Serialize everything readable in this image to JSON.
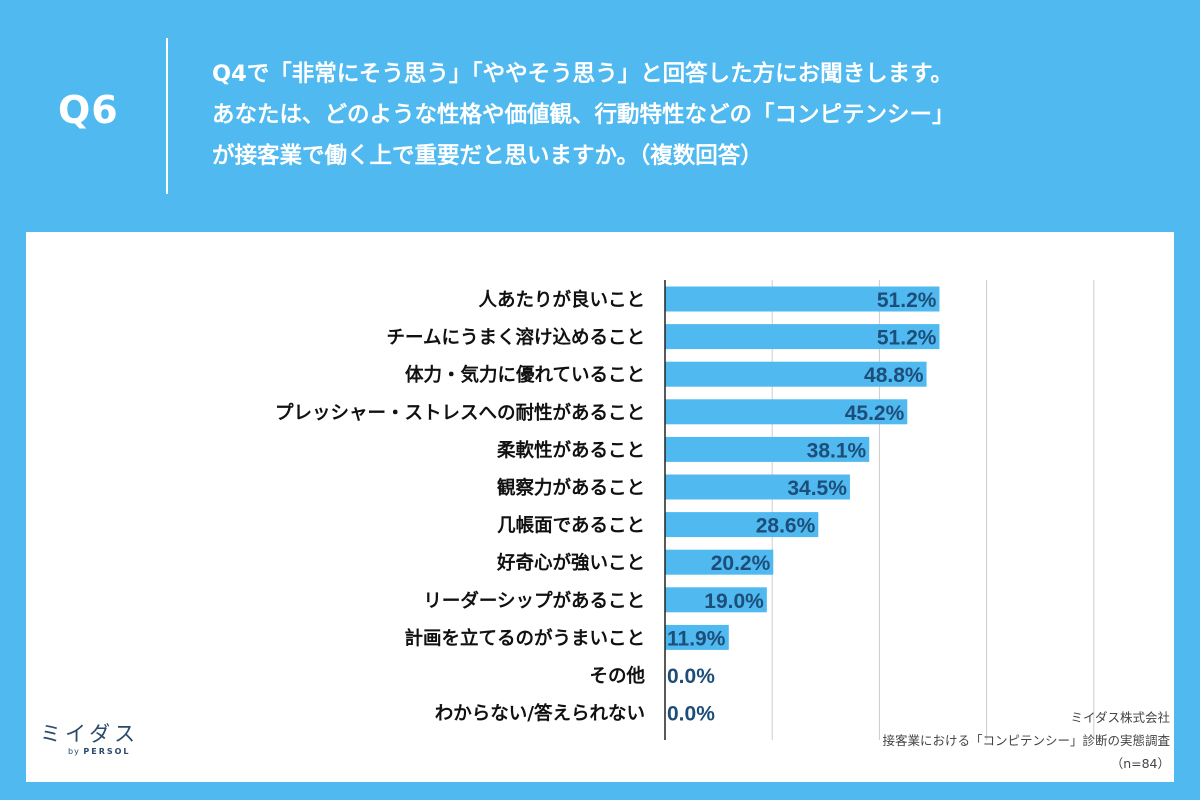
{
  "header": {
    "qnum": "Q6",
    "question_lines": [
      "Q4で「非常にそう思う」「ややそう思う」と回答した方にお聞きします。",
      "あなたは、どのような性格や価値観、行動特性などの「コンピテンシー」",
      "が接客業で働く上で重要だと思いますか。（複数回答）"
    ]
  },
  "logo": {
    "main": "ミイダス",
    "by": "by",
    "brand": "PERSOL"
  },
  "source": {
    "company": "ミイダス株式会社",
    "survey": "接客業における「コンピテンシー」診断の実態調査",
    "n": "（n=84）"
  },
  "colors": {
    "background": "#4fb9f0",
    "bar": "#4fb9f0",
    "value_text": "#1d4e7a",
    "label_text": "#111111",
    "grid": "#cccccc"
  },
  "chart_data": {
    "type": "bar",
    "orientation": "horizontal",
    "categories": [
      "人あたりが良いこと",
      "チームにうまく溶け込めること",
      "体力・気力に優れていること",
      "プレッシャー・ストレスへの耐性があること",
      "柔軟性があること",
      "観察力があること",
      "几帳面であること",
      "好奇心が強いこと",
      "リーダーシップがあること",
      "計画を立てるのがうまいこと",
      "その他",
      "わからない/答えられない"
    ],
    "values": [
      51.2,
      51.2,
      48.8,
      45.2,
      38.1,
      34.5,
      28.6,
      20.2,
      19.0,
      11.9,
      0.0,
      0.0
    ],
    "value_labels": [
      "51.2%",
      "51.2%",
      "48.8%",
      "45.2%",
      "38.1%",
      "34.5%",
      "28.6%",
      "20.2%",
      "19.0%",
      "11.9%",
      "0.0%",
      "0.0%"
    ],
    "xlim": [
      0,
      100
    ],
    "grid": true,
    "gridline_values": [
      20,
      40,
      60,
      80
    ]
  }
}
